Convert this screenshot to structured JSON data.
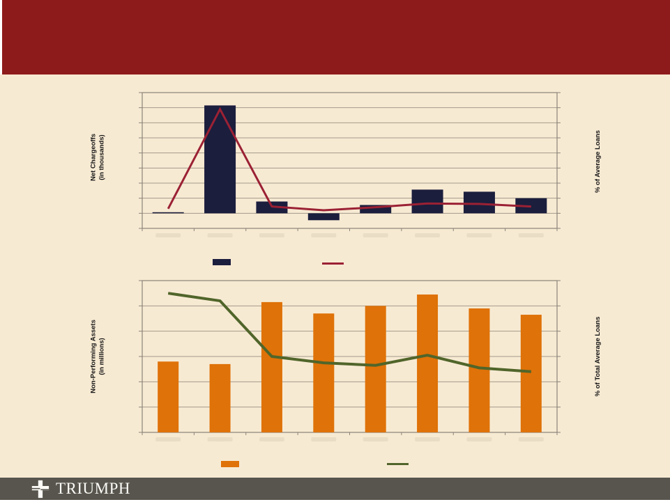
{
  "slide": {
    "background_color": "#f7ead3",
    "header_color": "#8e1b1b",
    "footer_color": "#57554d",
    "grid_color": "#a39a8a",
    "axis_color": "#8a8378"
  },
  "chart_data": [
    {
      "type": "combo-bar-line",
      "title": "",
      "categories": [
        "",
        "",
        "",
        "",
        "",
        "",
        "",
        ""
      ],
      "x_tick_labels_visible": false,
      "series": [
        {
          "name": "",
          "type": "bar",
          "axis": "left",
          "color": "#1b1e3d",
          "values": [
            0.07,
            7.15,
            0.78,
            -0.46,
            0.55,
            1.57,
            1.43,
            1.0
          ]
        },
        {
          "name": "",
          "type": "line",
          "axis": "right",
          "color": "#9b2134",
          "values": [
            0.3,
            6.9,
            0.45,
            0.2,
            0.4,
            0.65,
            0.62,
            0.45
          ]
        }
      ],
      "ylabel_left_lines": [
        "Net Chargeoffs",
        "(in thousands)"
      ],
      "ylabel_right": "% of Average Loans",
      "y_axis": {
        "units_above_baseline": 8,
        "units_below_baseline": 1,
        "tick_labels_visible": false
      },
      "grid": true,
      "legend": {
        "position": "below",
        "labels_visible": false
      }
    },
    {
      "type": "combo-bar-line",
      "title": "",
      "categories": [
        "",
        "",
        "",
        "",
        "",
        "",
        "",
        ""
      ],
      "x_tick_labels_visible": false,
      "series": [
        {
          "name": "",
          "type": "bar",
          "axis": "left",
          "color": "#df7208",
          "values": [
            2.8,
            2.7,
            5.15,
            4.7,
            5.0,
            5.45,
            4.9,
            4.65
          ]
        },
        {
          "name": "",
          "type": "line",
          "axis": "right",
          "color": "#50652a",
          "values": [
            5.5,
            5.2,
            3.0,
            2.75,
            2.65,
            3.05,
            2.55,
            2.4
          ]
        }
      ],
      "ylabel_left_lines": [
        "Non-Performing Assets",
        "(in millions)"
      ],
      "ylabel_right": "% of Total  Average Loans",
      "y_axis": {
        "units_above_baseline": 6,
        "units_below_baseline": 0,
        "tick_labels_visible": false
      },
      "grid": true,
      "legend": {
        "position": "below",
        "labels_visible": false
      }
    }
  ],
  "footer": {
    "brand": "TRIUMPH",
    "logo_icon": "cross-icon"
  }
}
